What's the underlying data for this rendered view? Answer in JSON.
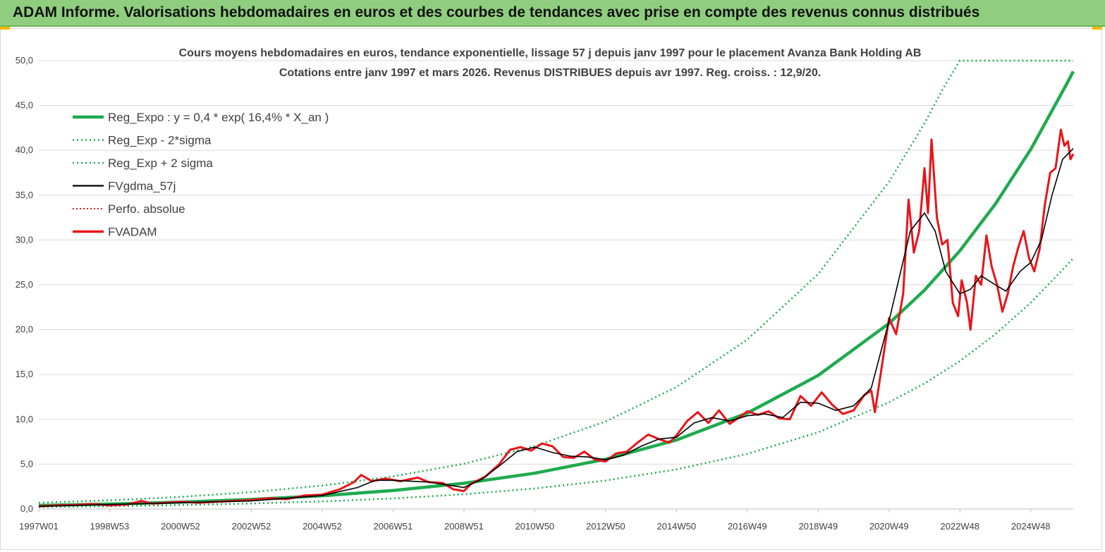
{
  "header": {
    "title": "ADAM Informe. Valorisations hebdomadaires en euros et des courbes de tendances avec prise en compte des revenus connus distribués"
  },
  "colors": {
    "banner": "#8fce7e",
    "trend": "#1faa4f",
    "bands": "#1faa4f",
    "smooth": "#000000",
    "perf": "#e02020",
    "price": "#e8141a",
    "grid": "#d9d9d9",
    "text": "#404040"
  },
  "chart_data": {
    "type": "line",
    "title_line1": "Cours moyens hebdomadaires en euros, tendance exponentielle, lissage 57 j depuis janv 1997 pour le placement Avanza Bank Holding AB",
    "title_line2": "Cotations entre janv 1997 et mars 2026. Revenus DISTRIBUES depuis avr 1997. Reg. croiss. : 12,9/20.",
    "xlabel": "",
    "ylabel": "",
    "x_range": [
      1997.0,
      2026.2
    ],
    "ylim": [
      0,
      50
    ],
    "y_ticks": [
      0,
      5,
      10,
      15,
      20,
      25,
      30,
      35,
      40,
      45,
      50
    ],
    "y_tick_labels": [
      "0,0",
      "5,0",
      "10,0",
      "15,0",
      "20,0",
      "25,0",
      "30,0",
      "35,0",
      "40,0",
      "45,0",
      "50,0"
    ],
    "x_ticks": [
      {
        "label": "1997W01",
        "x": 1997.0
      },
      {
        "label": "1998W53",
        "x": 1999.0
      },
      {
        "label": "2000W52",
        "x": 2001.0
      },
      {
        "label": "2002W52",
        "x": 2003.0
      },
      {
        "label": "2004W52",
        "x": 2005.0
      },
      {
        "label": "2006W51",
        "x": 2007.0
      },
      {
        "label": "2008W51",
        "x": 2009.0
      },
      {
        "label": "2010W50",
        "x": 2011.0
      },
      {
        "label": "2012W50",
        "x": 2013.0
      },
      {
        "label": "2014W50",
        "x": 2015.0
      },
      {
        "label": "2016W49",
        "x": 2017.0
      },
      {
        "label": "2018W49",
        "x": 2019.0
      },
      {
        "label": "2020W49",
        "x": 2021.0
      },
      {
        "label": "2022W48",
        "x": 2023.0
      },
      {
        "label": "2024W48",
        "x": 2025.0
      }
    ],
    "grid": true,
    "legend_position": "top-left",
    "legend": [
      {
        "name": "Reg_Expo : y = 0,4 * exp( 16,4% *  X_an )",
        "style": "trend"
      },
      {
        "name": "Reg_Exp - 2*sigma",
        "style": "band-low"
      },
      {
        "name": "Reg_Exp + 2 sigma",
        "style": "band-high"
      },
      {
        "name": "FVgdma_57j",
        "style": "smooth"
      },
      {
        "name": "Perfo. absolue",
        "style": "perf"
      },
      {
        "name": "FVADAM",
        "style": "price"
      }
    ],
    "series": [
      {
        "name": "Reg_Expo",
        "points": [
          [
            1997,
            0.4
          ],
          [
            1999,
            0.55
          ],
          [
            2001,
            0.77
          ],
          [
            2003,
            1.07
          ],
          [
            2005,
            1.48
          ],
          [
            2007,
            2.06
          ],
          [
            2009,
            2.87
          ],
          [
            2011,
            3.99
          ],
          [
            2013,
            5.55
          ],
          [
            2015,
            7.7
          ],
          [
            2017,
            10.7
          ],
          [
            2019,
            14.9
          ],
          [
            2021,
            20.7
          ],
          [
            2022,
            24.4
          ],
          [
            2023,
            28.8
          ],
          [
            2024,
            34.0
          ],
          [
            2025,
            40.1
          ],
          [
            2026,
            47.3
          ],
          [
            2026.2,
            48.8
          ]
        ]
      },
      {
        "name": "Reg_Exp - 2*sigma",
        "points": [
          [
            1997,
            0.22
          ],
          [
            1999,
            0.31
          ],
          [
            2001,
            0.44
          ],
          [
            2003,
            0.61
          ],
          [
            2005,
            0.85
          ],
          [
            2007,
            1.18
          ],
          [
            2009,
            1.64
          ],
          [
            2011,
            2.29
          ],
          [
            2013,
            3.18
          ],
          [
            2015,
            4.42
          ],
          [
            2017,
            6.15
          ],
          [
            2019,
            8.55
          ],
          [
            2021,
            11.9
          ],
          [
            2022,
            14.0
          ],
          [
            2023,
            16.5
          ],
          [
            2024,
            19.5
          ],
          [
            2025,
            23.0
          ],
          [
            2026,
            27.1
          ],
          [
            2026.2,
            28.0
          ]
        ]
      },
      {
        "name": "Reg_Exp + 2 sigma",
        "points": [
          [
            1997,
            0.7
          ],
          [
            1999,
            0.97
          ],
          [
            2001,
            1.35
          ],
          [
            2003,
            1.88
          ],
          [
            2005,
            2.61
          ],
          [
            2007,
            3.63
          ],
          [
            2009,
            5.05
          ],
          [
            2011,
            7.02
          ],
          [
            2013,
            9.76
          ],
          [
            2015,
            13.6
          ],
          [
            2017,
            18.9
          ],
          [
            2019,
            26.2
          ],
          [
            2021,
            36.5
          ],
          [
            2022,
            43.0
          ],
          [
            2022.5,
            46.7
          ],
          [
            2023.0,
            50.0
          ],
          [
            2026.2,
            50.0
          ]
        ]
      },
      {
        "name": "FVgdma_57j",
        "points": [
          [
            1997,
            0.3
          ],
          [
            1998,
            0.4
          ],
          [
            1999,
            0.5
          ],
          [
            2000,
            0.6
          ],
          [
            2001,
            0.7
          ],
          [
            2002,
            0.8
          ],
          [
            2003,
            0.9
          ],
          [
            2004,
            1.2
          ],
          [
            2005,
            1.5
          ],
          [
            2006,
            2.4
          ],
          [
            2006.5,
            3.2
          ],
          [
            2007,
            3.2
          ],
          [
            2008,
            3.0
          ],
          [
            2009,
            2.4
          ],
          [
            2009.5,
            3.3
          ],
          [
            2010,
            4.8
          ],
          [
            2010.5,
            6.4
          ],
          [
            2011,
            6.9
          ],
          [
            2011.5,
            6.3
          ],
          [
            2012,
            5.9
          ],
          [
            2012.5,
            5.8
          ],
          [
            2013,
            5.5
          ],
          [
            2013.5,
            6.0
          ],
          [
            2014,
            7.0
          ],
          [
            2014.5,
            7.8
          ],
          [
            2015,
            8.0
          ],
          [
            2015.5,
            9.6
          ],
          [
            2016,
            10.2
          ],
          [
            2016.5,
            9.8
          ],
          [
            2017,
            10.4
          ],
          [
            2017.5,
            10.6
          ],
          [
            2018,
            10.2
          ],
          [
            2018.5,
            11.9
          ],
          [
            2019,
            11.8
          ],
          [
            2019.5,
            11.0
          ],
          [
            2020,
            11.5
          ],
          [
            2020.5,
            13.5
          ],
          [
            2020.8,
            18.0
          ],
          [
            2021,
            21.0
          ],
          [
            2021.3,
            26.0
          ],
          [
            2021.6,
            31.0
          ],
          [
            2022,
            33.0
          ],
          [
            2022.3,
            31.0
          ],
          [
            2022.6,
            26.5
          ],
          [
            2023,
            24.0
          ],
          [
            2023.3,
            24.5
          ],
          [
            2023.6,
            26.0
          ],
          [
            2024,
            25.0
          ],
          [
            2024.3,
            24.3
          ],
          [
            2024.7,
            26.5
          ],
          [
            2025,
            27.5
          ],
          [
            2025.3,
            30.0
          ],
          [
            2025.6,
            35.0
          ],
          [
            2025.9,
            39.0
          ],
          [
            2026.2,
            40.2
          ]
        ]
      },
      {
        "name": "FVADAM",
        "points": [
          [
            1997,
            0.3
          ],
          [
            1997.5,
            0.4
          ],
          [
            1998,
            0.45
          ],
          [
            1998.5,
            0.55
          ],
          [
            1999,
            0.4
          ],
          [
            1999.5,
            0.5
          ],
          [
            1999.9,
            0.9
          ],
          [
            2000.2,
            0.6
          ],
          [
            2000.6,
            0.7
          ],
          [
            2001,
            0.8
          ],
          [
            2001.5,
            0.7
          ],
          [
            2002,
            0.8
          ],
          [
            2002.5,
            0.9
          ],
          [
            2003,
            1.0
          ],
          [
            2003.5,
            1.2
          ],
          [
            2004,
            1.1
          ],
          [
            2004.5,
            1.5
          ],
          [
            2005,
            1.6
          ],
          [
            2005.5,
            2.2
          ],
          [
            2005.9,
            3.0
          ],
          [
            2006.1,
            3.8
          ],
          [
            2006.4,
            3.1
          ],
          [
            2006.8,
            3.4
          ],
          [
            2007.2,
            3.1
          ],
          [
            2007.7,
            3.5
          ],
          [
            2008,
            3.0
          ],
          [
            2008.4,
            2.9
          ],
          [
            2008.7,
            2.2
          ],
          [
            2009.0,
            2.0
          ],
          [
            2009.2,
            2.8
          ],
          [
            2009.6,
            3.6
          ],
          [
            2010,
            5.0
          ],
          [
            2010.3,
            6.6
          ],
          [
            2010.6,
            6.9
          ],
          [
            2010.9,
            6.5
          ],
          [
            2011.2,
            7.3
          ],
          [
            2011.5,
            7.0
          ],
          [
            2011.8,
            5.8
          ],
          [
            2012.1,
            5.7
          ],
          [
            2012.4,
            6.4
          ],
          [
            2012.7,
            5.5
          ],
          [
            2013.0,
            5.3
          ],
          [
            2013.3,
            6.2
          ],
          [
            2013.6,
            6.4
          ],
          [
            2013.9,
            7.4
          ],
          [
            2014.2,
            8.3
          ],
          [
            2014.5,
            7.8
          ],
          [
            2014.8,
            7.4
          ],
          [
            2015.0,
            8.2
          ],
          [
            2015.3,
            9.8
          ],
          [
            2015.6,
            10.8
          ],
          [
            2015.9,
            9.6
          ],
          [
            2016.2,
            11.0
          ],
          [
            2016.5,
            9.5
          ],
          [
            2016.8,
            10.3
          ],
          [
            2017.0,
            10.9
          ],
          [
            2017.3,
            10.5
          ],
          [
            2017.6,
            10.9
          ],
          [
            2017.9,
            10.1
          ],
          [
            2018.2,
            10.0
          ],
          [
            2018.5,
            12.6
          ],
          [
            2018.8,
            11.5
          ],
          [
            2019.1,
            13.0
          ],
          [
            2019.4,
            11.6
          ],
          [
            2019.7,
            10.6
          ],
          [
            2020.0,
            11.0
          ],
          [
            2020.3,
            12.7
          ],
          [
            2020.5,
            13.2
          ],
          [
            2020.6,
            10.8
          ],
          [
            2020.8,
            16.0
          ],
          [
            2021.0,
            21.3
          ],
          [
            2021.2,
            19.5
          ],
          [
            2021.4,
            24.0
          ],
          [
            2021.55,
            34.5
          ],
          [
            2021.7,
            28.6
          ],
          [
            2021.85,
            31.0
          ],
          [
            2022.0,
            38.0
          ],
          [
            2022.1,
            33.0
          ],
          [
            2022.2,
            41.2
          ],
          [
            2022.35,
            32.5
          ],
          [
            2022.5,
            29.5
          ],
          [
            2022.65,
            30.0
          ],
          [
            2022.8,
            23.0
          ],
          [
            2022.95,
            21.5
          ],
          [
            2023.05,
            25.5
          ],
          [
            2023.2,
            23.0
          ],
          [
            2023.3,
            20.0
          ],
          [
            2023.45,
            26.0
          ],
          [
            2023.6,
            25.0
          ],
          [
            2023.75,
            30.5
          ],
          [
            2023.9,
            27.0
          ],
          [
            2024.05,
            25.0
          ],
          [
            2024.2,
            22.0
          ],
          [
            2024.35,
            24.0
          ],
          [
            2024.5,
            27.0
          ],
          [
            2024.65,
            29.2
          ],
          [
            2024.8,
            31.0
          ],
          [
            2024.95,
            28.0
          ],
          [
            2025.1,
            26.5
          ],
          [
            2025.25,
            29.0
          ],
          [
            2025.4,
            34.0
          ],
          [
            2025.55,
            37.5
          ],
          [
            2025.7,
            38.0
          ],
          [
            2025.85,
            42.3
          ],
          [
            2025.95,
            40.5
          ],
          [
            2026.05,
            41.0
          ],
          [
            2026.12,
            39.0
          ],
          [
            2026.2,
            39.6
          ]
        ]
      }
    ]
  }
}
